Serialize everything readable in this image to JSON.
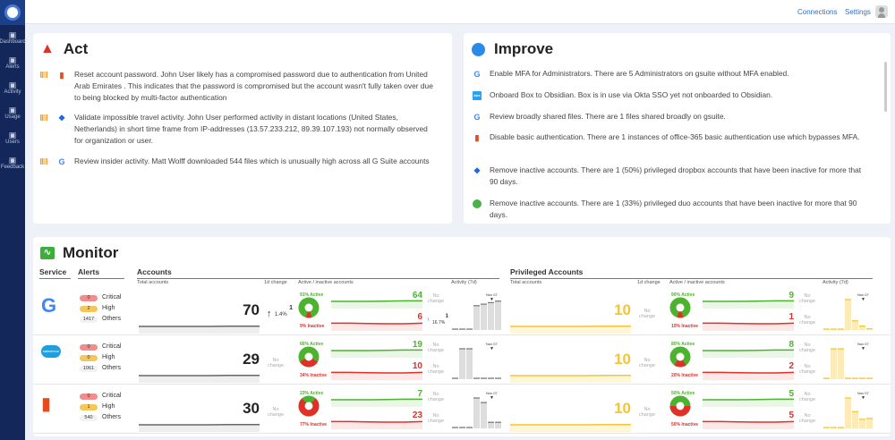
{
  "sidebar": {
    "items": [
      {
        "label": "Dashboard",
        "icon": "dashboard-icon"
      },
      {
        "label": "Alerts",
        "icon": "alerts-icon"
      },
      {
        "label": "Activity",
        "icon": "activity-icon"
      },
      {
        "label": "Usage",
        "icon": "usage-icon"
      },
      {
        "label": "Users",
        "icon": "users-icon"
      },
      {
        "label": "Feedback",
        "icon": "feedback-icon"
      }
    ]
  },
  "topbar": {
    "connections": "Connections",
    "settings": "Settings"
  },
  "act": {
    "title": "Act",
    "items": [
      {
        "service": "office365",
        "text": "Reset account password. John User likely has a compromised password due to authentication from United Arab Emirates . This indicates that the password is compromised but the account wasn't fully taken over due to being blocked by multi-factor authentication"
      },
      {
        "service": "dropbox",
        "text": "Validate impossible travel activity. John User performed activity in distant locations (United States, Netherlands) in short time frame from IP-addresses (13.57.233.212, 89.39.107.193) not normally observed for organization or user."
      },
      {
        "service": "gsuite",
        "text": "Review insider activity. Matt Wolff downloaded 544 files which is unusually high across all G Suite accounts"
      }
    ]
  },
  "improve": {
    "title": "Improve",
    "items": [
      {
        "service": "gsuite",
        "text": "Enable MFA for Administrators. There are 5 Administrators on gsuite without MFA enabled."
      },
      {
        "service": "box",
        "text": "Onboard Box to Obsidian. Box is in use via Okta SSO yet not onboarded to Obsidian."
      },
      {
        "service": "gsuite",
        "text": "Review broadly shared files. There are 1 files shared broadly on gsuite."
      },
      {
        "service": "office365",
        "text": "Disable basic authentication. There are 1 instances of office-365 basic authentication use which bypasses MFA."
      },
      {
        "service": "dropbox",
        "text": "Remove inactive accounts. There are 1 (50%) privileged dropbox accounts that have been inactive for more that 90 days."
      },
      {
        "service": "duo",
        "text": "Remove inactive accounts. There are 1 (33%) privileged duo accounts that have been inactive for more that 90 days."
      }
    ]
  },
  "monitor": {
    "title": "Monitor",
    "headers": {
      "service": "Service",
      "alerts": "Alerts",
      "accounts": "Accounts",
      "privileged": "Privileged Accounts",
      "total": "Total accounts",
      "change": "1d change",
      "active_inactive": "Active / inactive accounts",
      "activity": "Activity (7d)"
    },
    "labels": {
      "critical": "Critical",
      "high": "High",
      "others": "Others",
      "no_change": "No change",
      "nov": "Nov 07"
    },
    "rows": [
      {
        "service": "gsuite",
        "critical": "0",
        "high": "2",
        "others": "1417",
        "accounts": {
          "total": "70",
          "change": "1",
          "change_pct": "1.4%",
          "active_pct": "91% Active",
          "inactive_pct": "9% Inactive",
          "active": "64",
          "inactive": "6",
          "active_change": null,
          "inactive_change": "1",
          "inactive_change_pct": "16.7%",
          "active_frac": 0.91,
          "activity": [
            0.02,
            0.02,
            0.02,
            0.8,
            0.85,
            0.9,
            0.95
          ]
        },
        "privileged": {
          "total": "10",
          "active_pct": "90% Active",
          "inactive_pct": "10% Inactive",
          "active": "9",
          "inactive": "1",
          "active_frac": 0.9,
          "activity": [
            0.02,
            0.02,
            0.02,
            1,
            0.3,
            0.13,
            0.04
          ]
        }
      },
      {
        "service": "salesforce",
        "critical": "0",
        "high": "0",
        "others": "1061",
        "accounts": {
          "total": "29",
          "change": null,
          "active_pct": "66% Active",
          "inactive_pct": "34% Inactive",
          "active": "19",
          "inactive": "10",
          "active_frac": 0.66,
          "activity": [
            0.03,
            1,
            1,
            0.03,
            0.03,
            0.03,
            0.03
          ]
        },
        "privileged": {
          "total": "10",
          "active_pct": "80% Active",
          "inactive_pct": "20% Inactive",
          "active": "8",
          "inactive": "2",
          "active_frac": 0.8,
          "activity": [
            0.03,
            1,
            1,
            0.03,
            0.03,
            0.03,
            0.03
          ]
        }
      },
      {
        "service": "office365",
        "critical": "0",
        "high": "1",
        "others": "540",
        "accounts": {
          "total": "30",
          "change": null,
          "active_pct": "23% Active",
          "inactive_pct": "77% Inactive",
          "active": "7",
          "inactive": "23",
          "active_frac": 0.23,
          "activity": [
            0.02,
            0.02,
            0.02,
            1,
            0.85,
            0.2,
            0.2
          ]
        },
        "privileged": {
          "total": "10",
          "active_pct": "50% Active",
          "inactive_pct": "50% Inactive",
          "active": "5",
          "inactive": "5",
          "active_frac": 0.5,
          "activity": [
            0.02,
            0.02,
            0.02,
            1,
            0.55,
            0.3,
            0.33
          ]
        }
      }
    ]
  },
  "colors": {
    "green": "#4cb32e",
    "red": "#e0302a",
    "yellow": "#f5c23a",
    "navy": "#13275a",
    "link": "#2a6fd0"
  }
}
